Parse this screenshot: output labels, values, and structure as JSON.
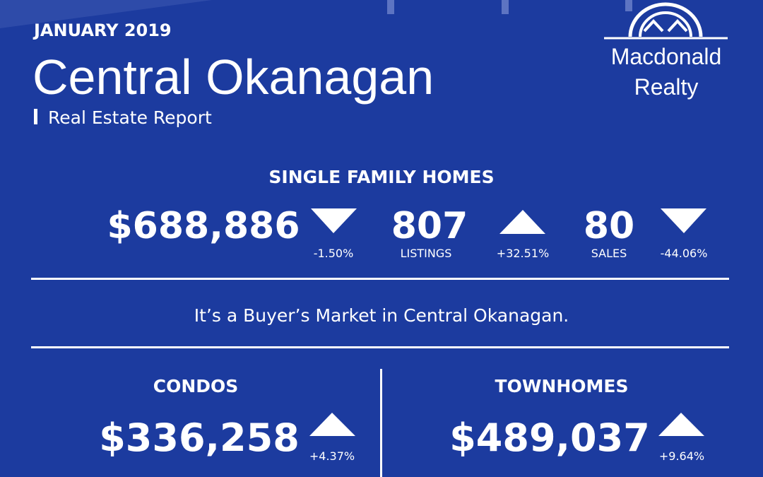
{
  "header": {
    "date": "JANUARY 2019",
    "title": "Central Okanagan",
    "subtitle": "Real Estate Report"
  },
  "logo": {
    "line1": "Macdonald",
    "line2": "Realty"
  },
  "single_family": {
    "heading": "SINGLE FAMILY HOMES",
    "price": "$688,886",
    "price_change": "-1.50%",
    "listings": "807",
    "listings_label": "LISTINGS",
    "listings_change": "+32.51%",
    "sales": "80",
    "sales_label": "SALES",
    "sales_change": "-44.06%"
  },
  "market_note": "It’s a Buyer’s Market in Central Okanagan.",
  "condos": {
    "heading": "CONDOS",
    "price": "$336,258",
    "price_change": "+4.37%"
  },
  "townhomes": {
    "heading": "TOWNHOMES",
    "price": "$489,037",
    "price_change": "+9.64%"
  }
}
